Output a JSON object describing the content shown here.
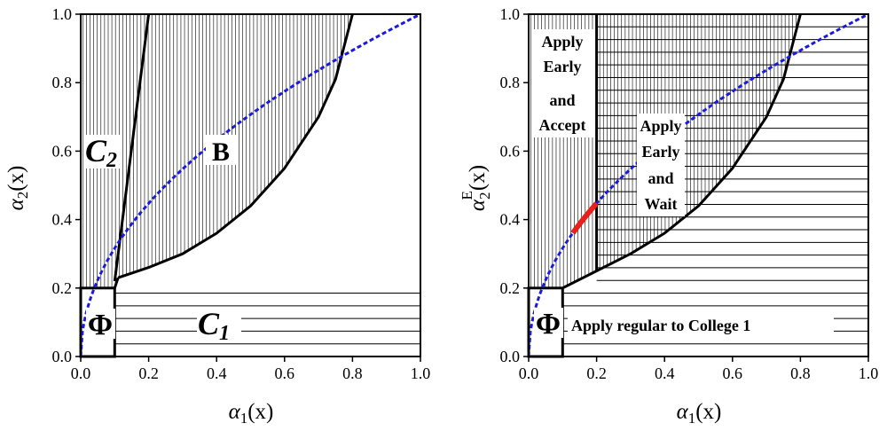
{
  "chart_data": [
    {
      "type": "area",
      "panel": "left",
      "xlabel": "α1(x)",
      "ylabel": "α2(x)",
      "xlim": [
        0,
        1
      ],
      "ylim": [
        0,
        1
      ],
      "xticks": [
        "0.0",
        "0.2",
        "0.4",
        "0.6",
        "0.8",
        "1.0"
      ],
      "yticks": [
        "0.0",
        "0.2",
        "0.4",
        "0.6",
        "0.8",
        "1.0"
      ],
      "region_labels": {
        "phi": "Φ",
        "c1": "C1",
        "c2": "C2",
        "b": "B"
      },
      "region_label_parts": {
        "c1": {
          "main": "C",
          "sub": "1"
        },
        "c2": {
          "main": "C",
          "sub": "2"
        }
      },
      "boundaries": {
        "phi_box": {
          "x_max": 0.1,
          "y_max": 0.2
        },
        "c2_right_edge": [
          [
            0.1,
            0.22
          ],
          [
            0.2,
            1.0
          ]
        ],
        "b_lower_curve": [
          [
            0.11,
            0.23
          ],
          [
            0.2,
            0.26
          ],
          [
            0.3,
            0.3
          ],
          [
            0.4,
            0.36
          ],
          [
            0.5,
            0.44
          ],
          [
            0.6,
            0.55
          ],
          [
            0.7,
            0.7
          ],
          [
            0.75,
            0.81
          ],
          [
            0.8,
            1.0
          ]
        ],
        "dashed_curve": "y = sqrt(x)"
      },
      "dashed_curve_color": "#1a1adb"
    },
    {
      "type": "area",
      "panel": "right",
      "xlabel": "α1(x)",
      "ylabel": "α2E(x)",
      "xlim": [
        0,
        1
      ],
      "ylim": [
        0,
        1
      ],
      "xticks": [
        "0.0",
        "0.2",
        "0.4",
        "0.6",
        "0.8",
        "1.0"
      ],
      "yticks": [
        "0.0",
        "0.2",
        "0.4",
        "0.6",
        "0.8",
        "1.0"
      ],
      "region_labels": {
        "phi": "Φ",
        "regular": "Apply regular to College 1",
        "early_accept": [
          "Apply",
          "Early",
          "and",
          "Accept"
        ],
        "early_wait": [
          "Apply",
          "Early",
          "and",
          "Wait"
        ]
      },
      "boundaries": {
        "phi_box": {
          "x_max": 0.1,
          "y_max": 0.2
        },
        "accept_right_edge_x": 0.2,
        "wait_lower_curve": [
          [
            0.2,
            0.25
          ],
          [
            0.3,
            0.3
          ],
          [
            0.4,
            0.36
          ],
          [
            0.5,
            0.44
          ],
          [
            0.6,
            0.55
          ],
          [
            0.7,
            0.7
          ],
          [
            0.75,
            0.81
          ],
          [
            0.8,
            1.0
          ]
        ],
        "dashed_curve": "y = sqrt(x)",
        "highlight_segment": {
          "x_from": 0.13,
          "x_to": 0.2,
          "color": "#e8201c"
        }
      },
      "dashed_curve_color": "#1a1adb"
    }
  ]
}
